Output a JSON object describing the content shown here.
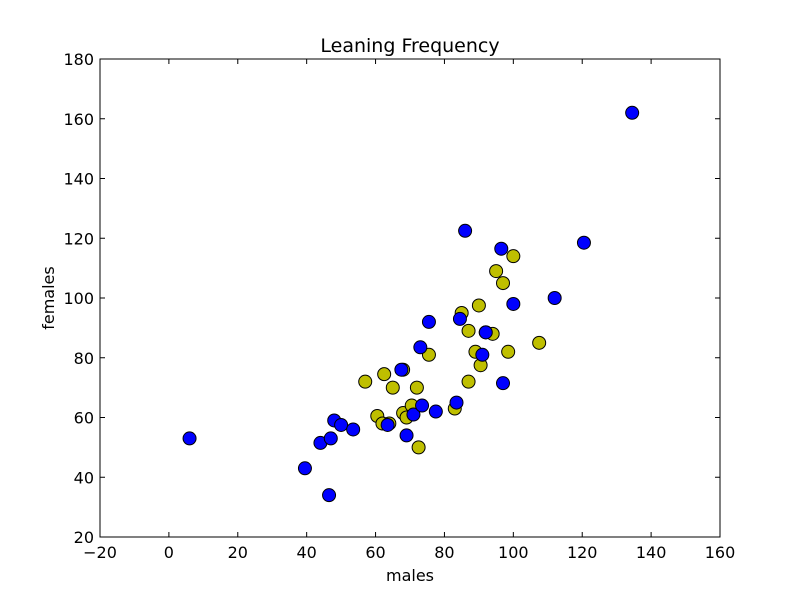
{
  "chart_data": {
    "type": "scatter",
    "title": "Leaning Frequency",
    "xlabel": "males",
    "ylabel": "females",
    "xlim": [
      -20,
      160
    ],
    "ylim": [
      20,
      180
    ],
    "xticks": [
      -20,
      0,
      20,
      40,
      60,
      80,
      100,
      120,
      140,
      160
    ],
    "yticks": [
      20,
      40,
      60,
      80,
      100,
      120,
      140,
      160,
      180
    ],
    "xtick_labels": [
      "−20",
      "0",
      "20",
      "40",
      "60",
      "80",
      "100",
      "120",
      "140",
      "160"
    ],
    "ytick_labels": [
      "20",
      "40",
      "60",
      "80",
      "100",
      "120",
      "140",
      "160",
      "180"
    ],
    "grid": false,
    "series": [
      {
        "color": "#bfbf00",
        "points": [
          [
            57,
            72
          ],
          [
            60.5,
            60.5
          ],
          [
            62,
            58
          ],
          [
            62.5,
            74.5
          ],
          [
            64,
            58
          ],
          [
            65,
            70
          ],
          [
            68,
            61.5
          ],
          [
            68,
            76
          ],
          [
            69,
            60
          ],
          [
            70.5,
            64
          ],
          [
            72,
            70
          ],
          [
            72.5,
            50
          ],
          [
            75.5,
            81
          ],
          [
            83,
            63
          ],
          [
            85,
            95
          ],
          [
            87,
            72
          ],
          [
            87,
            89
          ],
          [
            89,
            82
          ],
          [
            90,
            97.5
          ],
          [
            90.5,
            77.5
          ],
          [
            92,
            88.5
          ],
          [
            94,
            88
          ],
          [
            95,
            109
          ],
          [
            97,
            105
          ],
          [
            98.5,
            82
          ],
          [
            100,
            114
          ],
          [
            107.5,
            85
          ]
        ]
      },
      {
        "color": "#0000ff",
        "points": [
          [
            6,
            53
          ],
          [
            39.5,
            43
          ],
          [
            44,
            51.5
          ],
          [
            46.5,
            34
          ],
          [
            47,
            53
          ],
          [
            48,
            59
          ],
          [
            50,
            57.5
          ],
          [
            53.5,
            56
          ],
          [
            63.5,
            57.5
          ],
          [
            67.5,
            76
          ],
          [
            69,
            54
          ],
          [
            71,
            61
          ],
          [
            73,
            83.5
          ],
          [
            73.5,
            64
          ],
          [
            75.5,
            92
          ],
          [
            77.5,
            62
          ],
          [
            83.5,
            65
          ],
          [
            84.5,
            93
          ],
          [
            86,
            122.5
          ],
          [
            91,
            81
          ],
          [
            92,
            88.5
          ],
          [
            96.5,
            116.5
          ],
          [
            97,
            71.5
          ],
          [
            100,
            98
          ],
          [
            112,
            100
          ],
          [
            120.5,
            118.5
          ],
          [
            134.5,
            162
          ]
        ]
      }
    ]
  }
}
